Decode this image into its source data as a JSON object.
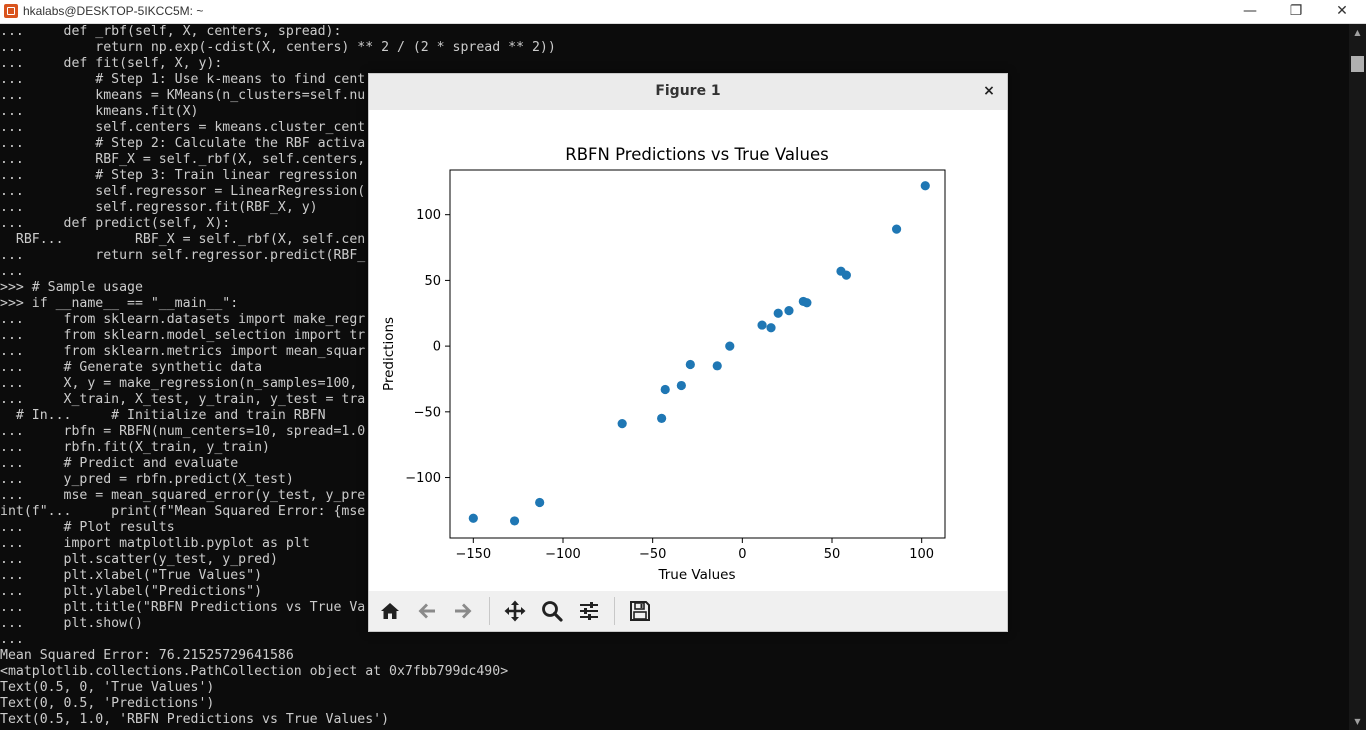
{
  "window": {
    "title": "hkalabs@DESKTOP-5IKCC5M: ~",
    "minimize_glyph": "—",
    "maximize_glyph": "❐",
    "close_glyph": "✕"
  },
  "terminal": {
    "lines": [
      "...     def _rbf(self, X, centers, spread):",
      "...         return np.exp(-cdist(X, centers) ** 2 / (2 * spread ** 2))",
      "...     def fit(self, X, y):",
      "...         # Step 1: Use k-means to find cent",
      "...         kmeans = KMeans(n_clusters=self.nu",
      "...         kmeans.fit(X)",
      "...         self.centers = kmeans.cluster_cent",
      "...         # Step 2: Calculate the RBF activa",
      "...         RBF_X = self._rbf(X, self.centers,",
      "...         # Step 3: Train linear regression",
      "...         self.regressor = LinearRegression(",
      "...         self.regressor.fit(RBF_X, y)",
      "...     def predict(self, X):",
      "  RBF...         RBF_X = self._rbf(X, self.cen",
      "...         return self.regressor.predict(RBF_",
      "...",
      ">>> # Sample usage",
      ">>> if __name__ == \"__main__\":",
      "...     from sklearn.datasets import make_regr",
      "...     from sklearn.model_selection import tr",
      "...     from sklearn.metrics import mean_squar",
      "...     # Generate synthetic data",
      "...     X, y = make_regression(n_samples=100,",
      "...     X_train, X_test, y_train, y_test = tra",
      "  # In...     # Initialize and train RBFN",
      "...     rbfn = RBFN(num_centers=10, spread=1.0",
      "...     rbfn.fit(X_train, y_train)",
      "...     # Predict and evaluate",
      "...     y_pred = rbfn.predict(X_test)",
      "...     mse = mean_squared_error(y_test, y_pre",
      "int(f\"...     print(f\"Mean Squared Error: {mse",
      "...     # Plot results",
      "...     import matplotlib.pyplot as plt",
      "...     plt.scatter(y_test, y_pred)",
      "...     plt.xlabel(\"True Values\")",
      "...     plt.ylabel(\"Predictions\")",
      "...     plt.title(\"RBFN Predictions vs True Va",
      "...     plt.show()",
      "...",
      "Mean Squared Error: 76.21525729641586",
      "<matplotlib.collections.PathCollection object at 0x7fbb799dc490>",
      "Text(0.5, 0, 'True Values')",
      "Text(0, 0.5, 'Predictions')",
      "Text(0.5, 1.0, 'RBFN Predictions vs True Values')"
    ]
  },
  "figure": {
    "title": "Figure 1",
    "close_glyph": "×",
    "toolbar": [
      "home-icon",
      "back-icon",
      "forward-icon",
      "pan-icon",
      "zoom-icon",
      "configure-icon",
      "save-icon"
    ]
  },
  "chart_data": {
    "type": "scatter",
    "title": "RBFN Predictions vs True Values",
    "xlabel": "True Values",
    "ylabel": "Predictions",
    "xlim": [
      -163,
      113
    ],
    "ylim": [
      -146,
      134
    ],
    "xticks": [
      -150,
      -100,
      -50,
      0,
      50,
      100
    ],
    "xtick_labels": [
      "−150",
      "−100",
      "−50",
      "0",
      "50",
      "100"
    ],
    "yticks": [
      -100,
      -50,
      0,
      50,
      100
    ],
    "ytick_labels": [
      "−100",
      "−50",
      "0",
      "50",
      "100"
    ],
    "color": "#1f77b4",
    "x": [
      -150,
      -127,
      -113,
      -67,
      -45,
      -43,
      -34,
      -29,
      -14,
      -7,
      11,
      16,
      20,
      26,
      34,
      36,
      55,
      58,
      86,
      102
    ],
    "y": [
      -131,
      -133,
      -119,
      -59,
      -55,
      -33,
      -30,
      -14,
      -15,
      0,
      16,
      14,
      25,
      27,
      34,
      33,
      57,
      54,
      89,
      122
    ]
  }
}
